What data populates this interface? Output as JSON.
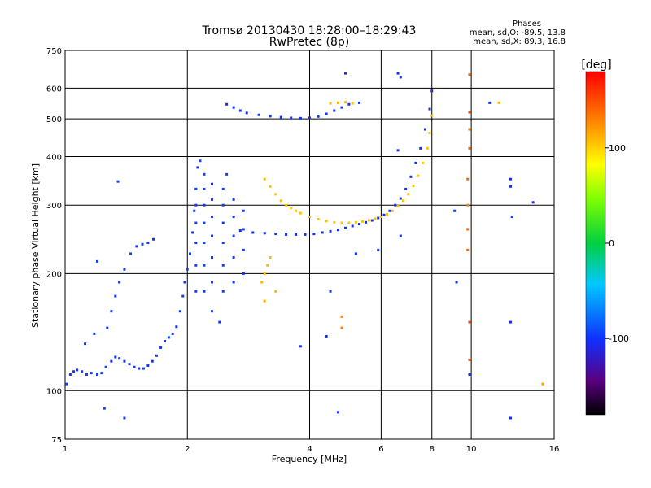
{
  "chart_data": {
    "type": "scatter",
    "title": "Tromsø 20130430 18:28:00–18:29:43",
    "subtitle": "RwPretec (8p)",
    "xlabel": "Frequency [MHz]",
    "ylabel": "Stationary phase Virtual Height [km]",
    "x_scale": "log",
    "y_scale": "log",
    "xlim": [
      1,
      16
    ],
    "ylim": [
      75,
      750
    ],
    "x_ticks": [
      1,
      2,
      4,
      6,
      8,
      10,
      16
    ],
    "y_ticks": [
      75,
      100,
      200,
      300,
      400,
      500,
      600,
      750
    ],
    "x_tick_labels": [
      "1",
      "2",
      "4",
      "6",
      "8",
      "10",
      "16"
    ],
    "y_tick_labels": [
      "75",
      "100",
      "200",
      "300",
      "400",
      "500",
      "600",
      "750"
    ],
    "grid": true,
    "stats": {
      "title": "Phases",
      "line_o": "mean, sd,O: -89.5, 13.8",
      "line_x": "mean, sd,X:  89.3, 16.8"
    },
    "colorbar": {
      "label": "[deg]",
      "range": [
        -180,
        180
      ],
      "ticks": [
        100,
        0,
        -100
      ],
      "tick_labels": [
        "100",
        "0",
        "-100"
      ],
      "colormap": "rainbow"
    },
    "series": [
      {
        "points": [
          [
            1.01,
            104,
            -95
          ],
          [
            1.03,
            110,
            -95
          ],
          [
            1.05,
            112,
            -100
          ],
          [
            1.07,
            113,
            -95
          ],
          [
            1.1,
            112,
            -95
          ],
          [
            1.13,
            110,
            -95
          ],
          [
            1.16,
            111,
            -100
          ],
          [
            1.2,
            110,
            -95
          ],
          [
            1.23,
            111,
            -95
          ],
          [
            1.26,
            115,
            -95
          ],
          [
            1.3,
            119,
            -100
          ],
          [
            1.33,
            122,
            -95
          ],
          [
            1.36,
            121,
            -95
          ],
          [
            1.4,
            119,
            -100
          ],
          [
            1.44,
            117,
            -95
          ],
          [
            1.48,
            115,
            -95
          ],
          [
            1.52,
            114,
            -100
          ],
          [
            1.56,
            114,
            -95
          ],
          [
            1.6,
            116,
            -95
          ],
          [
            1.64,
            119,
            -100
          ],
          [
            1.68,
            123,
            -95
          ],
          [
            1.72,
            129,
            -95
          ],
          [
            1.76,
            134,
            -100
          ],
          [
            1.8,
            137,
            -95
          ],
          [
            1.84,
            140,
            -95
          ],
          [
            1.88,
            146,
            -100
          ],
          [
            1.92,
            160,
            -95
          ],
          [
            1.95,
            175,
            -95
          ],
          [
            1.97,
            190,
            -100
          ],
          [
            2.0,
            205,
            -95
          ],
          [
            2.03,
            225,
            -95
          ],
          [
            2.06,
            255,
            -100
          ],
          [
            2.08,
            290,
            -95
          ],
          [
            2.1,
            330,
            -95
          ],
          [
            2.12,
            375,
            -100
          ],
          [
            1.27,
            145,
            -95
          ],
          [
            1.3,
            160,
            -95
          ],
          [
            1.33,
            175,
            -95
          ],
          [
            1.36,
            190,
            -100
          ],
          [
            1.4,
            205,
            -95
          ],
          [
            1.45,
            225,
            -95
          ],
          [
            1.5,
            235,
            -100
          ],
          [
            1.55,
            238,
            -95
          ],
          [
            1.6,
            240,
            -95
          ],
          [
            1.65,
            245,
            -100
          ],
          [
            1.12,
            132,
            -95
          ],
          [
            1.18,
            140,
            -95
          ],
          [
            1.2,
            215,
            -95
          ],
          [
            1.35,
            345,
            -95
          ],
          [
            1.25,
            90,
            -95
          ],
          [
            1.4,
            85,
            -95
          ]
        ]
      },
      {
        "points": [
          [
            2.1,
            180,
            -95
          ],
          [
            2.1,
            210,
            -95
          ],
          [
            2.1,
            240,
            -100
          ],
          [
            2.1,
            270,
            -95
          ],
          [
            2.1,
            300,
            -95
          ],
          [
            2.1,
            330,
            -95
          ],
          [
            2.2,
            180,
            -100
          ],
          [
            2.2,
            210,
            -95
          ],
          [
            2.2,
            240,
            -95
          ],
          [
            2.2,
            270,
            -95
          ],
          [
            2.2,
            300,
            -100
          ],
          [
            2.2,
            330,
            -95
          ],
          [
            2.2,
            360,
            -95
          ],
          [
            2.3,
            190,
            -95
          ],
          [
            2.3,
            220,
            -100
          ],
          [
            2.3,
            250,
            -95
          ],
          [
            2.3,
            280,
            -95
          ],
          [
            2.3,
            310,
            -95
          ],
          [
            2.3,
            340,
            -100
          ],
          [
            2.45,
            180,
            -95
          ],
          [
            2.45,
            210,
            -95
          ],
          [
            2.45,
            240,
            -95
          ],
          [
            2.45,
            270,
            -100
          ],
          [
            2.45,
            300,
            -95
          ],
          [
            2.45,
            330,
            -95
          ],
          [
            2.6,
            190,
            -95
          ],
          [
            2.6,
            220,
            -100
          ],
          [
            2.6,
            250,
            -95
          ],
          [
            2.6,
            280,
            -95
          ],
          [
            2.6,
            310,
            -95
          ],
          [
            2.75,
            200,
            -100
          ],
          [
            2.75,
            230,
            -95
          ],
          [
            2.75,
            260,
            -95
          ],
          [
            2.75,
            290,
            -95
          ],
          [
            2.3,
            160,
            -95
          ],
          [
            2.4,
            150,
            -95
          ],
          [
            2.15,
            390,
            -95
          ],
          [
            2.5,
            360,
            -95
          ]
        ]
      },
      {
        "points": [
          [
            2.7,
            258,
            -100
          ],
          [
            2.9,
            255,
            -100
          ],
          [
            3.1,
            254,
            -100
          ],
          [
            3.3,
            253,
            -100
          ],
          [
            3.5,
            252,
            -100
          ],
          [
            3.7,
            252,
            -100
          ],
          [
            3.9,
            252,
            -100
          ],
          [
            4.1,
            253,
            -100
          ],
          [
            4.3,
            255,
            -100
          ],
          [
            4.5,
            257,
            -100
          ],
          [
            4.7,
            259,
            -100
          ],
          [
            4.9,
            262,
            -100
          ],
          [
            5.1,
            265,
            -100
          ],
          [
            5.3,
            268,
            -100
          ],
          [
            5.5,
            271,
            -100
          ],
          [
            5.7,
            274,
            -100
          ],
          [
            5.9,
            278,
            -100
          ],
          [
            6.1,
            283,
            -100
          ],
          [
            6.3,
            290,
            -100
          ],
          [
            6.5,
            300,
            -100
          ],
          [
            6.7,
            312,
            -100
          ],
          [
            6.9,
            330,
            -100
          ],
          [
            7.1,
            355,
            -100
          ],
          [
            7.3,
            385,
            -100
          ],
          [
            7.5,
            420,
            -100
          ],
          [
            7.7,
            470,
            -100
          ],
          [
            7.9,
            530,
            -100
          ],
          [
            8.0,
            590,
            -100
          ]
        ]
      },
      {
        "points": [
          [
            3.1,
            350,
            105
          ],
          [
            3.2,
            335,
            105
          ],
          [
            3.3,
            320,
            105
          ],
          [
            3.4,
            308,
            105
          ],
          [
            3.5,
            300,
            105
          ],
          [
            3.6,
            295,
            105
          ],
          [
            3.7,
            290,
            105
          ],
          [
            3.8,
            286,
            105
          ],
          [
            4.0,
            280,
            105
          ],
          [
            4.2,
            276,
            105
          ],
          [
            4.4,
            273,
            105
          ],
          [
            4.6,
            271,
            105
          ],
          [
            4.8,
            270,
            105
          ],
          [
            5.0,
            270,
            105
          ],
          [
            5.2,
            271,
            105
          ],
          [
            5.4,
            272,
            105
          ],
          [
            5.6,
            274,
            105
          ],
          [
            5.8,
            277,
            105
          ],
          [
            6.0,
            280,
            105
          ],
          [
            6.2,
            284,
            105
          ],
          [
            6.4,
            290,
            105
          ],
          [
            6.6,
            298,
            105
          ],
          [
            6.8,
            308,
            105
          ],
          [
            7.0,
            320,
            105
          ],
          [
            7.2,
            336,
            105
          ],
          [
            7.4,
            357,
            105
          ],
          [
            7.6,
            385,
            105
          ],
          [
            7.8,
            420,
            105
          ],
          [
            7.9,
            460,
            105
          ],
          [
            8.0,
            510,
            105
          ],
          [
            3.05,
            190,
            110
          ],
          [
            3.1,
            200,
            110
          ],
          [
            3.15,
            210,
            110
          ],
          [
            3.2,
            220,
            110
          ],
          [
            3.3,
            180,
            110
          ],
          [
            3.1,
            170,
            110
          ]
        ]
      },
      {
        "points": [
          [
            2.5,
            545,
            -100
          ],
          [
            2.6,
            535,
            -100
          ],
          [
            2.7,
            525,
            -100
          ],
          [
            2.8,
            518,
            -100
          ],
          [
            3.0,
            512,
            -100
          ],
          [
            3.2,
            508,
            -100
          ],
          [
            3.4,
            505,
            -100
          ],
          [
            3.6,
            503,
            -100
          ],
          [
            3.8,
            502,
            -100
          ],
          [
            4.0,
            503,
            -100
          ],
          [
            4.2,
            507,
            -100
          ],
          [
            4.4,
            515,
            -100
          ],
          [
            4.6,
            525,
            -100
          ],
          [
            4.8,
            535,
            -100
          ],
          [
            5.0,
            545,
            -100
          ],
          [
            5.3,
            550,
            -100
          ],
          [
            4.5,
            548,
            110
          ],
          [
            4.7,
            550,
            110
          ],
          [
            4.9,
            552,
            110
          ],
          [
            5.1,
            548,
            110
          ],
          [
            6.6,
            655,
            -100
          ],
          [
            6.7,
            640,
            -100
          ],
          [
            4.9,
            655,
            -100
          ]
        ]
      },
      {
        "points": [
          [
            9.9,
            650,
            140
          ],
          [
            9.9,
            520,
            150
          ],
          [
            9.9,
            470,
            130
          ],
          [
            9.9,
            420,
            140
          ],
          [
            9.8,
            350,
            140
          ],
          [
            9.8,
            300,
            130
          ],
          [
            9.8,
            260,
            140
          ],
          [
            9.8,
            230,
            140
          ],
          [
            9.9,
            150,
            150
          ],
          [
            9.9,
            120,
            140
          ],
          [
            9.9,
            110,
            -100
          ],
          [
            9.2,
            190,
            -100
          ],
          [
            9.1,
            290,
            -100
          ],
          [
            11.1,
            550,
            -100
          ],
          [
            11.7,
            550,
            110
          ],
          [
            12.5,
            350,
            -100
          ],
          [
            12.5,
            335,
            -100
          ],
          [
            12.6,
            280,
            -100
          ],
          [
            12.5,
            150,
            -100
          ],
          [
            12.5,
            85,
            -100
          ],
          [
            14.2,
            305,
            -100
          ],
          [
            15.0,
            104,
            120
          ],
          [
            4.7,
            88,
            -100
          ],
          [
            4.8,
            145,
            130
          ],
          [
            4.8,
            155,
            130
          ],
          [
            4.5,
            180,
            -100
          ],
          [
            4.4,
            138,
            -100
          ],
          [
            3.8,
            130,
            -100
          ],
          [
            5.9,
            230,
            -100
          ],
          [
            5.2,
            225,
            -100
          ],
          [
            6.6,
            415,
            -100
          ],
          [
            6.7,
            250,
            -100
          ]
        ]
      }
    ]
  }
}
